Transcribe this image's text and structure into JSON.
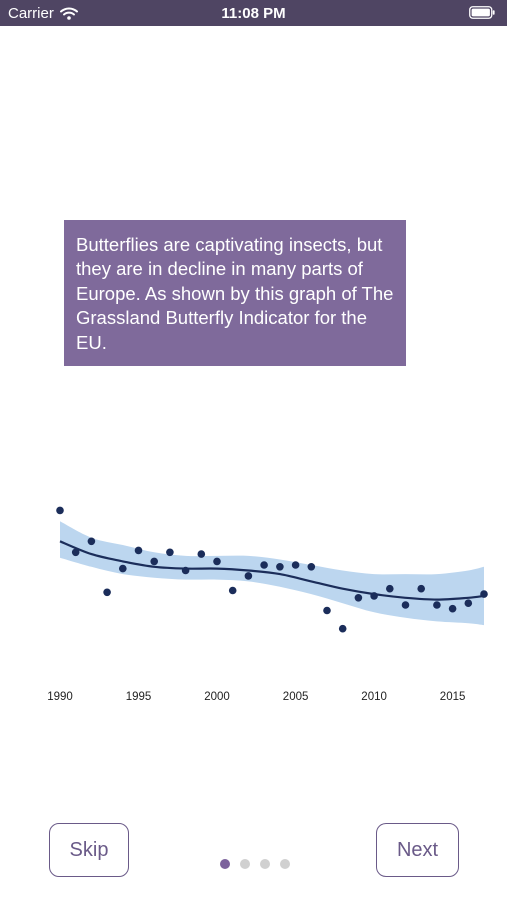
{
  "status_bar": {
    "carrier": "Carrier",
    "time": "11:08 PM",
    "wifi_icon": "wifi-icon",
    "battery_icon": "battery-icon"
  },
  "intro": {
    "text": "Butterflies are captivating insects, but they are in decline in many parts of Europe. As shown by this graph of The Grassland Butterfly Indicator for the EU."
  },
  "chart_data": {
    "type": "scatter",
    "title": "",
    "xlabel": "",
    "ylabel": "",
    "x_ticks": [
      "1990",
      "1995",
      "2000",
      "2005",
      "2010",
      "2015"
    ],
    "xlim": [
      1990,
      2017
    ],
    "ylim": [
      0,
      1
    ],
    "grid": false,
    "colors": {
      "points": "#1b2d5a",
      "trend": "#1b2d5a",
      "band": "#bcd6ef"
    },
    "points": [
      {
        "x": 1990,
        "y": 0.8
      },
      {
        "x": 1991,
        "y": 0.57
      },
      {
        "x": 1992,
        "y": 0.63
      },
      {
        "x": 1993,
        "y": 0.35
      },
      {
        "x": 1994,
        "y": 0.48
      },
      {
        "x": 1995,
        "y": 0.58
      },
      {
        "x": 1996,
        "y": 0.52
      },
      {
        "x": 1997,
        "y": 0.57
      },
      {
        "x": 1998,
        "y": 0.47
      },
      {
        "x": 1999,
        "y": 0.56
      },
      {
        "x": 2000,
        "y": 0.52
      },
      {
        "x": 2001,
        "y": 0.36
      },
      {
        "x": 2002,
        "y": 0.44
      },
      {
        "x": 2003,
        "y": 0.5
      },
      {
        "x": 2004,
        "y": 0.49
      },
      {
        "x": 2005,
        "y": 0.5
      },
      {
        "x": 2006,
        "y": 0.49
      },
      {
        "x": 2007,
        "y": 0.25
      },
      {
        "x": 2008,
        "y": 0.15
      },
      {
        "x": 2009,
        "y": 0.32
      },
      {
        "x": 2010,
        "y": 0.33
      },
      {
        "x": 2011,
        "y": 0.37
      },
      {
        "x": 2012,
        "y": 0.28
      },
      {
        "x": 2013,
        "y": 0.37
      },
      {
        "x": 2014,
        "y": 0.28
      },
      {
        "x": 2015,
        "y": 0.26
      },
      {
        "x": 2016,
        "y": 0.29
      },
      {
        "x": 2017,
        "y": 0.34
      }
    ],
    "trend": [
      {
        "x": 1990,
        "y": 0.63,
        "lower": 0.54,
        "upper": 0.74
      },
      {
        "x": 1992,
        "y": 0.56,
        "lower": 0.49,
        "upper": 0.65
      },
      {
        "x": 1994,
        "y": 0.52,
        "lower": 0.45,
        "upper": 0.61
      },
      {
        "x": 1996,
        "y": 0.49,
        "lower": 0.43,
        "upper": 0.57
      },
      {
        "x": 1998,
        "y": 0.48,
        "lower": 0.42,
        "upper": 0.55
      },
      {
        "x": 2000,
        "y": 0.48,
        "lower": 0.42,
        "upper": 0.55
      },
      {
        "x": 2002,
        "y": 0.47,
        "lower": 0.41,
        "upper": 0.55
      },
      {
        "x": 2004,
        "y": 0.45,
        "lower": 0.38,
        "upper": 0.53
      },
      {
        "x": 2006,
        "y": 0.41,
        "lower": 0.34,
        "upper": 0.5
      },
      {
        "x": 2008,
        "y": 0.37,
        "lower": 0.29,
        "upper": 0.47
      },
      {
        "x": 2010,
        "y": 0.34,
        "lower": 0.24,
        "upper": 0.45
      },
      {
        "x": 2012,
        "y": 0.32,
        "lower": 0.21,
        "upper": 0.45
      },
      {
        "x": 2014,
        "y": 0.31,
        "lower": 0.19,
        "upper": 0.45
      },
      {
        "x": 2016,
        "y": 0.32,
        "lower": 0.18,
        "upper": 0.47
      },
      {
        "x": 2017,
        "y": 0.33,
        "lower": 0.17,
        "upper": 0.49
      }
    ]
  },
  "navigation": {
    "skip_label": "Skip",
    "next_label": "Next",
    "page_count": 4,
    "current_page": 1
  }
}
